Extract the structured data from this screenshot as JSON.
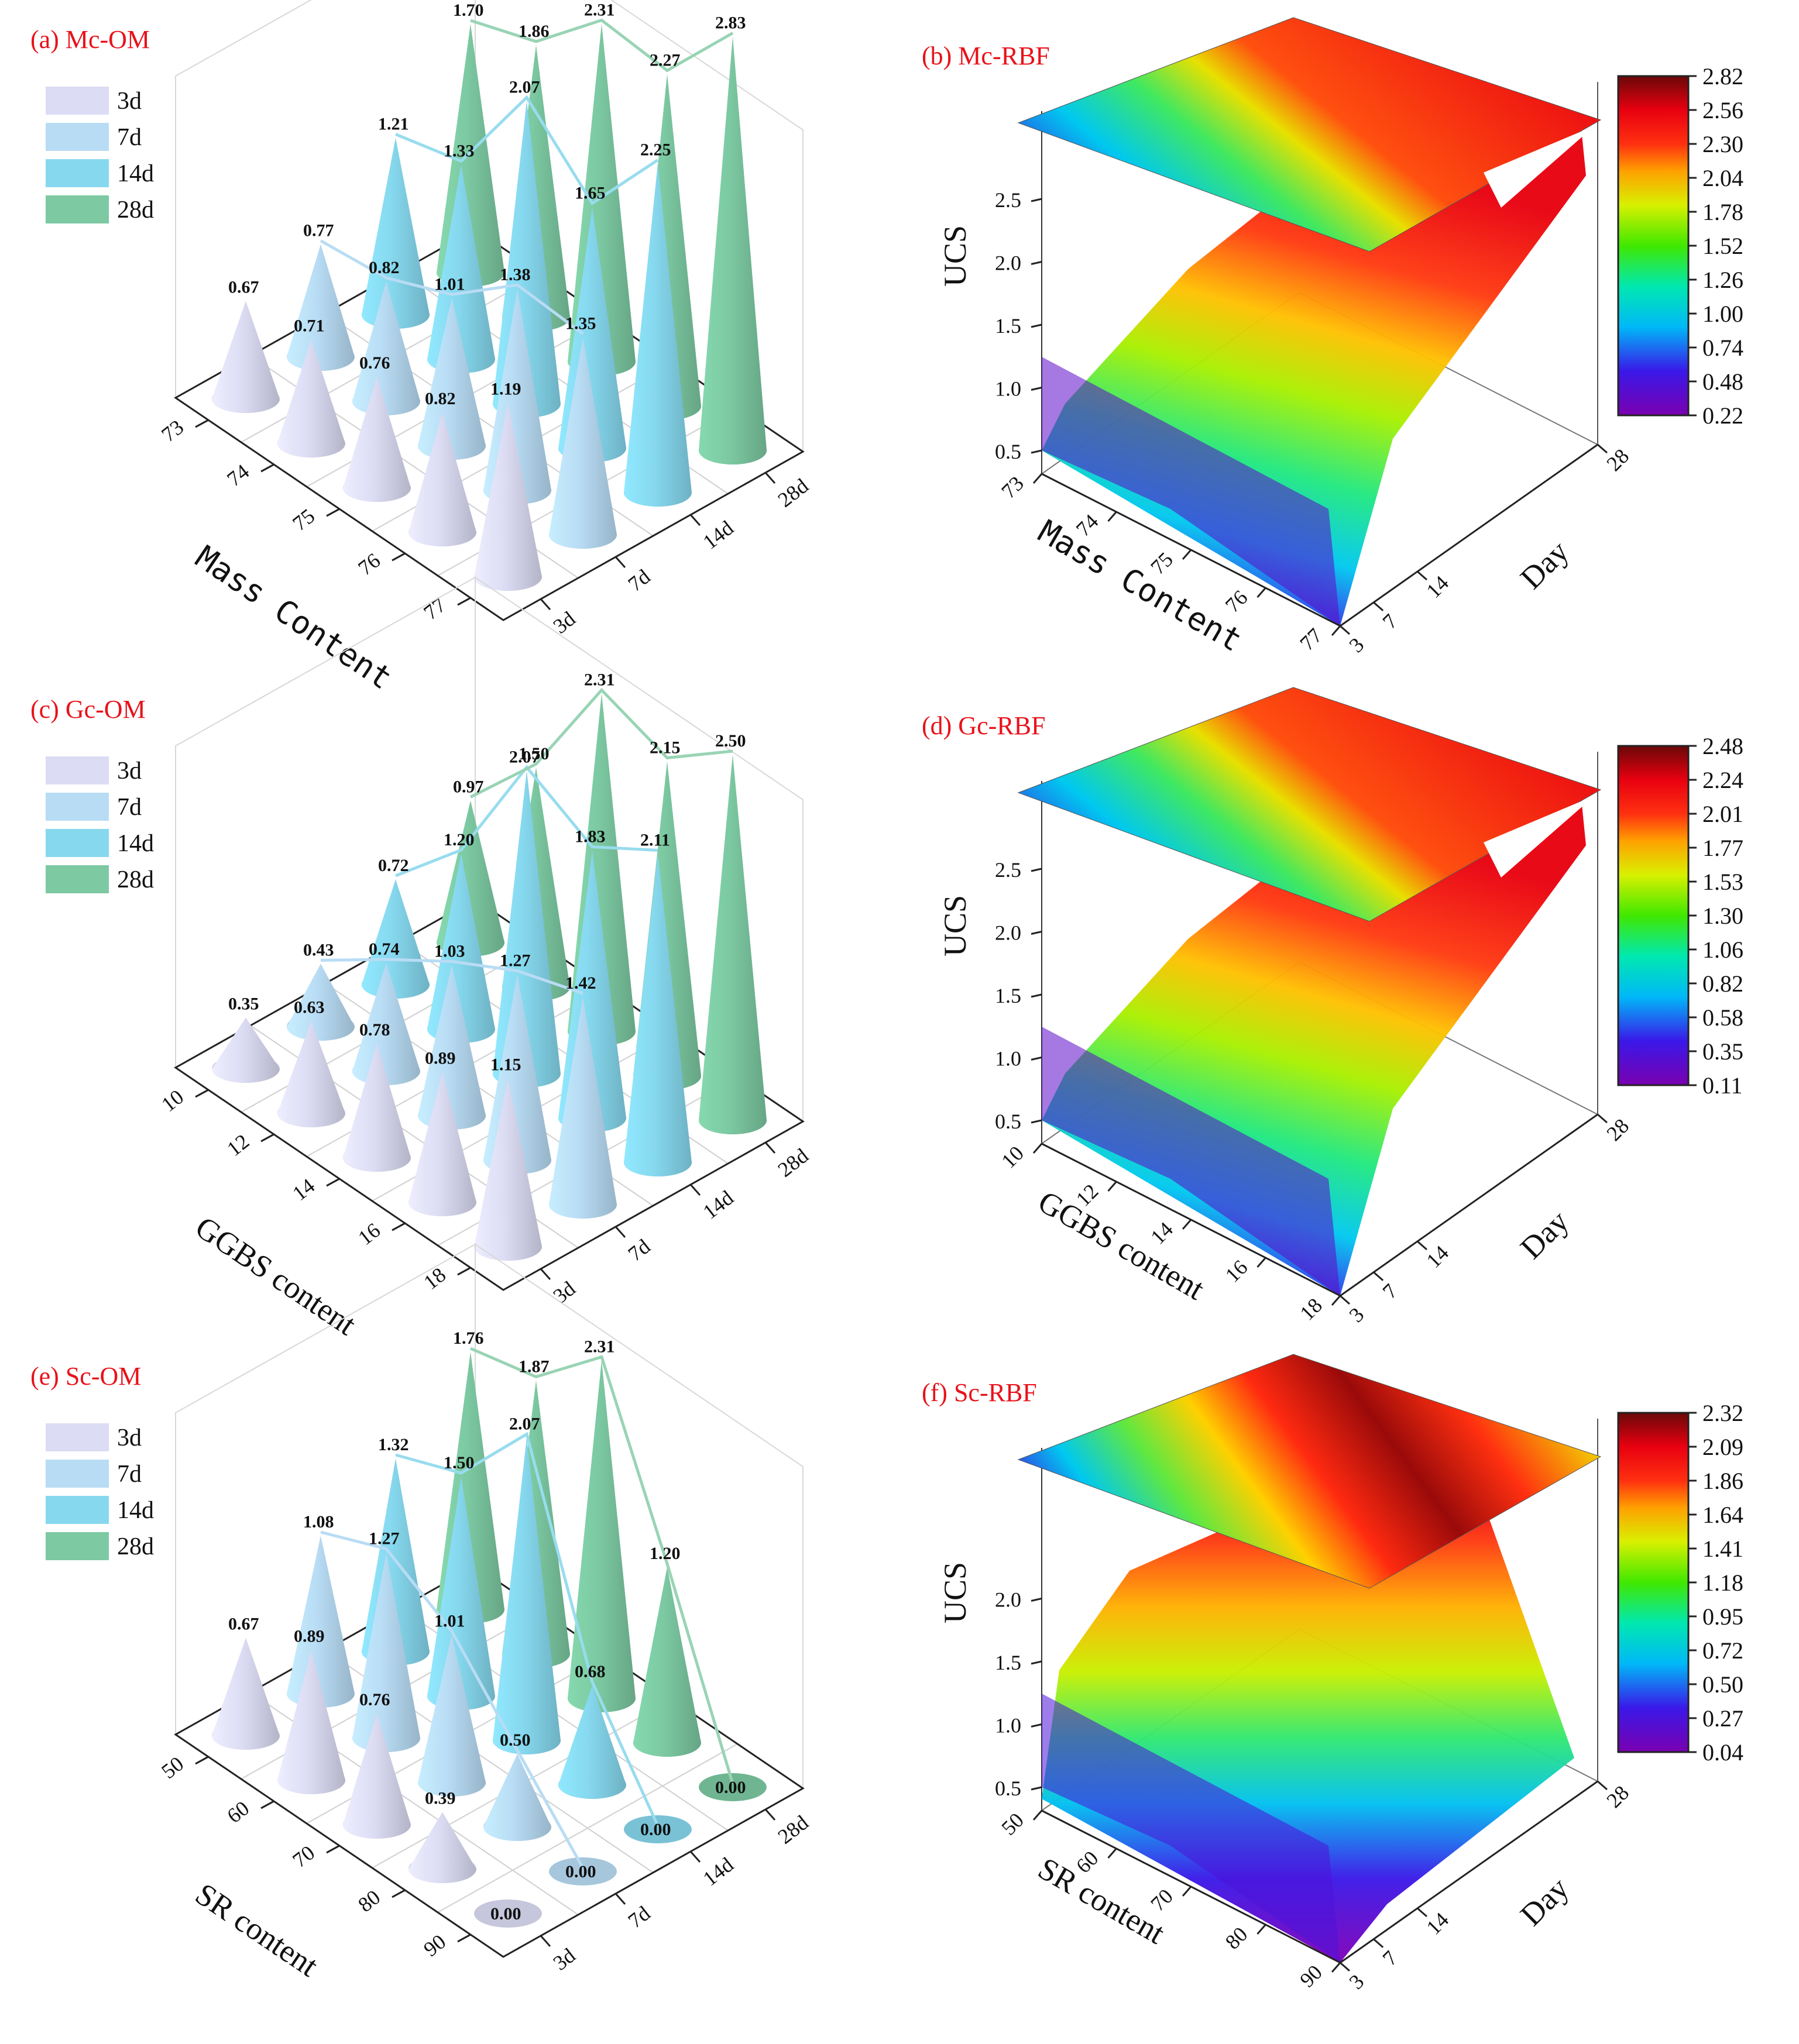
{
  "chart_data": [
    {
      "id": "a",
      "type": "bar",
      "style": "3d-cone",
      "title": "(a) Mc-OM",
      "xlabel": "Mass Content",
      "ylabel": "",
      "categories": [
        "73",
        "74",
        "75",
        "76",
        "77"
      ],
      "series_labels": [
        "3d",
        "7d",
        "14d",
        "28d"
      ],
      "series": [
        {
          "name": "3d",
          "values": [
            0.67,
            0.71,
            0.76,
            0.82,
            1.19
          ]
        },
        {
          "name": "7d",
          "values": [
            0.77,
            0.82,
            1.01,
            1.38,
            1.35
          ]
        },
        {
          "name": "14d",
          "values": [
            1.21,
            1.33,
            2.07,
            1.65,
            2.25
          ]
        },
        {
          "name": "28d",
          "values": [
            1.7,
            1.86,
            2.31,
            2.27,
            2.83
          ]
        }
      ]
    },
    {
      "id": "b",
      "type": "heatmap",
      "style": "3d-surface",
      "title": "(b) Mc-RBF",
      "xlabel": "Mass Content",
      "ylabel": "Day",
      "zlabel": "UCS",
      "x_ticks": [
        "73",
        "74",
        "75",
        "76",
        "77"
      ],
      "y_ticks": [
        "3",
        "7",
        "14",
        "28"
      ],
      "z_ticks": [
        "0.5",
        "1.0",
        "1.5",
        "2.0",
        "2.5"
      ],
      "colorbar_ticks": [
        "2.82",
        "2.56",
        "2.30",
        "2.04",
        "1.78",
        "1.52",
        "1.26",
        "1.00",
        "0.74",
        "0.48",
        "0.22"
      ],
      "colorbar_range": [
        0.22,
        2.82
      ]
    },
    {
      "id": "c",
      "type": "bar",
      "style": "3d-cone",
      "title": "(c) Gc-OM",
      "xlabel": "GGBS content",
      "ylabel": "",
      "categories": [
        "10",
        "12",
        "14",
        "16",
        "18"
      ],
      "series_labels": [
        "3d",
        "7d",
        "14d",
        "28d"
      ],
      "series": [
        {
          "name": "3d",
          "values": [
            0.35,
            0.63,
            0.78,
            0.89,
            1.15
          ]
        },
        {
          "name": "7d",
          "values": [
            0.43,
            0.74,
            1.03,
            1.27,
            1.42
          ]
        },
        {
          "name": "14d",
          "values": [
            0.72,
            1.2,
            2.07,
            1.83,
            2.11
          ]
        },
        {
          "name": "28d",
          "values": [
            0.97,
            1.5,
            2.31,
            2.15,
            2.5
          ]
        }
      ]
    },
    {
      "id": "d",
      "type": "heatmap",
      "style": "3d-surface",
      "title": "(d) Gc-RBF",
      "xlabel": "GGBS content",
      "ylabel": "Day",
      "zlabel": "UCS",
      "x_ticks": [
        "10",
        "12",
        "14",
        "16",
        "18"
      ],
      "y_ticks": [
        "3",
        "7",
        "14",
        "28"
      ],
      "z_ticks": [
        "0.5",
        "1.0",
        "1.5",
        "2.0",
        "2.5"
      ],
      "colorbar_ticks": [
        "2.48",
        "2.24",
        "2.01",
        "1.77",
        "1.53",
        "1.30",
        "1.06",
        "0.82",
        "0.58",
        "0.35",
        "0.11"
      ],
      "colorbar_range": [
        0.11,
        2.48
      ]
    },
    {
      "id": "e",
      "type": "bar",
      "style": "3d-cone",
      "title": "(e) Sc-OM",
      "xlabel": "SR content",
      "ylabel": "",
      "categories": [
        "50",
        "60",
        "70",
        "80",
        "90"
      ],
      "series_labels": [
        "3d",
        "7d",
        "14d",
        "28d"
      ],
      "series": [
        {
          "name": "3d",
          "values": [
            0.67,
            0.89,
            0.76,
            0.39,
            0.0
          ]
        },
        {
          "name": "7d",
          "values": [
            1.08,
            1.27,
            1.01,
            0.5,
            0.0
          ]
        },
        {
          "name": "14d",
          "values": [
            1.32,
            1.5,
            2.07,
            0.68,
            0.0
          ]
        },
        {
          "name": "28d",
          "values": [
            1.76,
            1.87,
            2.31,
            1.2,
            0.0
          ]
        }
      ]
    },
    {
      "id": "f",
      "type": "heatmap",
      "style": "3d-surface",
      "title": "(f) Sc-RBF",
      "xlabel": "SR content",
      "ylabel": "Day",
      "zlabel": "UCS",
      "x_ticks": [
        "50",
        "60",
        "70",
        "80",
        "90"
      ],
      "y_ticks": [
        "3",
        "7",
        "14",
        "28"
      ],
      "z_ticks": [
        "0.5",
        "1.0",
        "1.5",
        "2.0"
      ],
      "colorbar_ticks": [
        "2.32",
        "2.09",
        "1.86",
        "1.64",
        "1.41",
        "1.18",
        "0.95",
        "0.72",
        "0.50",
        "0.27",
        "0.04"
      ],
      "colorbar_range": [
        0.04,
        2.32
      ]
    }
  ],
  "colors": {
    "title": "#e8121a",
    "s3d": "#dcdcf4",
    "s7d": "#b8dcf4",
    "s14d": "#86d8ee",
    "s28d": "#7cc9a2",
    "line7d": "#b8dcf4",
    "line14d": "#98dcee",
    "line28d": "#98d4b4"
  }
}
